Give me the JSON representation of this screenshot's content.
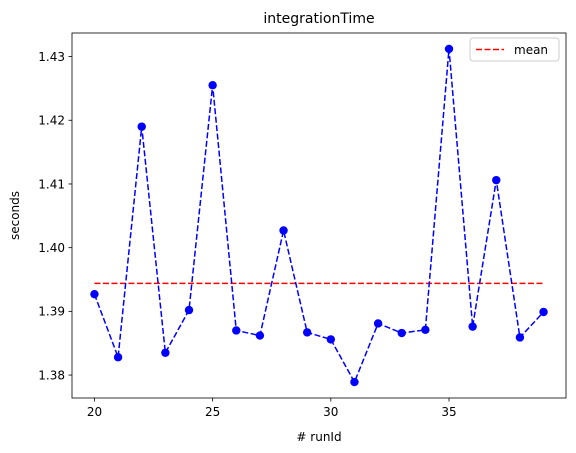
{
  "chart_data": {
    "type": "line",
    "title": "integrationTime",
    "xlabel": "# runId",
    "ylabel": "seconds",
    "xlim": [
      19.05,
      39.95
    ],
    "ylim": [
      1.3764,
      1.4337
    ],
    "xticks": [
      20,
      25,
      30,
      35
    ],
    "xtick_labels": [
      "20",
      "25",
      "30",
      "35"
    ],
    "yticks": [
      1.38,
      1.39,
      1.4,
      1.41,
      1.42,
      1.43
    ],
    "ytick_labels": [
      "1.38",
      "1.39",
      "1.40",
      "1.41",
      "1.42",
      "1.43"
    ],
    "legend_position": "top-right",
    "series": [
      {
        "kind": "data",
        "color": "#0000ff",
        "line_style": "dashed",
        "marker": "circle",
        "x": [
          20,
          21,
          22,
          23,
          24,
          25,
          26,
          27,
          28,
          29,
          30,
          31,
          32,
          33,
          34,
          35,
          36,
          37,
          38,
          39
        ],
        "y": [
          1.3927,
          1.3828,
          1.419,
          1.3835,
          1.3902,
          1.4255,
          1.387,
          1.3862,
          1.4027,
          1.3867,
          1.3856,
          1.3789,
          1.3881,
          1.3866,
          1.3871,
          1.4312,
          1.3876,
          1.4106,
          1.3859,
          1.3899
        ]
      },
      {
        "kind": "mean",
        "name": "mean",
        "color": "#ff0000",
        "line_style": "dashed",
        "x": [
          20,
          39
        ],
        "y": [
          1.3944,
          1.3944
        ]
      }
    ]
  }
}
